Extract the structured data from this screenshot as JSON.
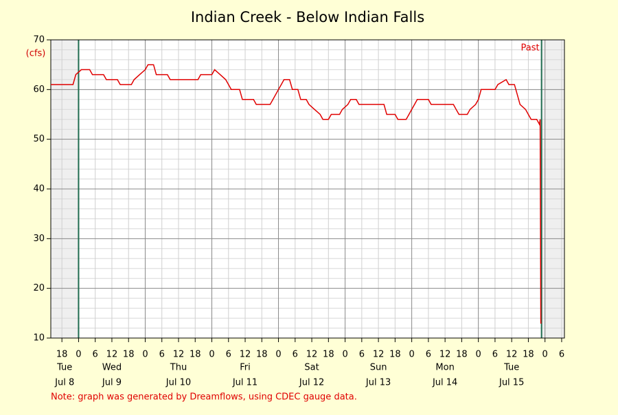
{
  "chart_data": {
    "type": "line",
    "title": "Indian Creek - Below Indian Falls",
    "y_label": "(cfs)",
    "note": "Note: graph was generated by Dreamflows, using CDEC gauge data.",
    "past_label": "Past",
    "shaded_before": "Jul 9 00:00",
    "shaded_after": "Jul 15 22:45",
    "xlim": [
      "Jul 8 14:00",
      "Jul 16 07:00"
    ],
    "ylim": [
      10,
      70
    ],
    "yticks": [
      10,
      20,
      30,
      40,
      50,
      60,
      70
    ],
    "yminor": [
      12,
      14,
      16,
      18,
      22,
      24,
      26,
      28,
      32,
      34,
      36,
      38,
      42,
      44,
      46,
      48,
      52,
      54,
      56,
      58,
      62,
      64,
      66,
      68
    ],
    "grid": true,
    "xticks": [
      {
        "value": "Jul 8 18:00",
        "label": "18"
      },
      {
        "value": "Jul 9 00:00",
        "label": "0"
      },
      {
        "value": "Jul 9 06:00",
        "label": "6"
      },
      {
        "value": "Jul 9 12:00",
        "label": "12"
      },
      {
        "value": "Jul 9 18:00",
        "label": "18"
      },
      {
        "value": "Jul 10 00:00",
        "label": "0"
      },
      {
        "value": "Jul 10 06:00",
        "label": "6"
      },
      {
        "value": "Jul 10 12:00",
        "label": "12"
      },
      {
        "value": "Jul 10 18:00",
        "label": "18"
      },
      {
        "value": "Jul 11 00:00",
        "label": "0"
      },
      {
        "value": "Jul 11 06:00",
        "label": "6"
      },
      {
        "value": "Jul 11 12:00",
        "label": "12"
      },
      {
        "value": "Jul 11 18:00",
        "label": "18"
      },
      {
        "value": "Jul 12 00:00",
        "label": "0"
      },
      {
        "value": "Jul 12 06:00",
        "label": "6"
      },
      {
        "value": "Jul 12 12:00",
        "label": "12"
      },
      {
        "value": "Jul 12 18:00",
        "label": "18"
      },
      {
        "value": "Jul 13 00:00",
        "label": "0"
      },
      {
        "value": "Jul 13 06:00",
        "label": "6"
      },
      {
        "value": "Jul 13 12:00",
        "label": "12"
      },
      {
        "value": "Jul 13 18:00",
        "label": "18"
      },
      {
        "value": "Jul 14 00:00",
        "label": "0"
      },
      {
        "value": "Jul 14 06:00",
        "label": "6"
      },
      {
        "value": "Jul 14 12:00",
        "label": "12"
      },
      {
        "value": "Jul 14 18:00",
        "label": "18"
      },
      {
        "value": "Jul 15 00:00",
        "label": "0"
      },
      {
        "value": "Jul 15 06:00",
        "label": "6"
      },
      {
        "value": "Jul 15 12:00",
        "label": "12"
      },
      {
        "value": "Jul 15 18:00",
        "label": "18"
      },
      {
        "value": "Jul 16 00:00",
        "label": "0"
      },
      {
        "value": "Jul 16 06:00",
        "label": "6"
      }
    ],
    "day_labels": [
      {
        "value": "Jul 8 19:00",
        "label": "Tue",
        "date": "Jul 8"
      },
      {
        "value": "Jul 9 12:00",
        "label": "Wed",
        "date": "Jul 9"
      },
      {
        "value": "Jul 10 12:00",
        "label": "Thu",
        "date": "Jul 10"
      },
      {
        "value": "Jul 11 12:00",
        "label": "Fri",
        "date": "Jul 11"
      },
      {
        "value": "Jul 12 12:00",
        "label": "Sat",
        "date": "Jul 12"
      },
      {
        "value": "Jul 13 12:00",
        "label": "Sun",
        "date": "Jul 13"
      },
      {
        "value": "Jul 14 12:00",
        "label": "Mon",
        "date": "Jul 14"
      },
      {
        "value": "Jul 15 12:00",
        "label": "Tue",
        "date": "Jul 15"
      }
    ],
    "x": [
      "Jul 8 14:00",
      "Jul 8 22:00",
      "Jul 8 23:00",
      "Jul 9 01:00",
      "Jul 9 04:00",
      "Jul 9 05:00",
      "Jul 9 09:00",
      "Jul 9 10:00",
      "Jul 9 14:00",
      "Jul 9 15:00",
      "Jul 9 19:00",
      "Jul 9 20:00",
      "Jul 9 22:00",
      "Jul 10 00:00",
      "Jul 10 01:00",
      "Jul 10 03:00",
      "Jul 10 04:00",
      "Jul 10 08:00",
      "Jul 10 09:00",
      "Jul 10 19:00",
      "Jul 10 20:00",
      "Jul 11 00:00",
      "Jul 11 01:00",
      "Jul 11 03:00",
      "Jul 11 05:00",
      "Jul 11 06:00",
      "Jul 11 07:00",
      "Jul 11 10:00",
      "Jul 11 11:00",
      "Jul 11 15:00",
      "Jul 11 16:00",
      "Jul 11 21:00",
      "Jul 11 22:00",
      "Jul 12 00:00",
      "Jul 12 01:00",
      "Jul 12 02:00",
      "Jul 12 04:00",
      "Jul 12 05:00",
      "Jul 12 07:00",
      "Jul 12 08:00",
      "Jul 12 10:00",
      "Jul 12 11:00",
      "Jul 12 13:00",
      "Jul 12 15:00",
      "Jul 12 16:00",
      "Jul 12 18:00",
      "Jul 12 19:00",
      "Jul 12 22:00",
      "Jul 12 23:00",
      "Jul 13 01:00",
      "Jul 13 02:00",
      "Jul 13 04:00",
      "Jul 13 05:00",
      "Jul 13 14:00",
      "Jul 13 15:00",
      "Jul 13 18:00",
      "Jul 13 19:00",
      "Jul 13 22:00",
      "Jul 13 23:00",
      "Jul 14 00:00",
      "Jul 14 01:00",
      "Jul 14 02:00",
      "Jul 14 06:00",
      "Jul 14 07:00",
      "Jul 14 15:00",
      "Jul 14 16:00",
      "Jul 14 17:00",
      "Jul 14 20:00",
      "Jul 14 21:00",
      "Jul 14 23:00",
      "Jul 15 00:00",
      "Jul 15 01:00",
      "Jul 15 06:00",
      "Jul 15 07:00",
      "Jul 15 10:00",
      "Jul 15 11:00",
      "Jul 15 13:00",
      "Jul 15 14:00",
      "Jul 15 15:00",
      "Jul 15 17:00",
      "Jul 15 18:00",
      "Jul 15 19:00",
      "Jul 15 21:00",
      "Jul 15 22:00",
      "Jul 15 22:15",
      "Jul 15 22:30",
      "Jul 15 22:45"
    ],
    "series": [
      {
        "name": "Flow",
        "color": "#e00000",
        "values": [
          61,
          61,
          63,
          64,
          64,
          63,
          63,
          62,
          62,
          61,
          61,
          62,
          63,
          64,
          65,
          65,
          63,
          63,
          62,
          62,
          63,
          63,
          64,
          63,
          62,
          61,
          60,
          60,
          58,
          58,
          57,
          57,
          58,
          60,
          61,
          62,
          62,
          60,
          60,
          58,
          58,
          57,
          56,
          55,
          54,
          54,
          55,
          55,
          56,
          57,
          58,
          58,
          57,
          57,
          55,
          55,
          54,
          54,
          55,
          56,
          57,
          58,
          58,
          57,
          57,
          56,
          55,
          55,
          56,
          57,
          58,
          60,
          60,
          61,
          62,
          61,
          61,
          59,
          57,
          56,
          55,
          54,
          54,
          53,
          54,
          13,
          13
        ]
      }
    ]
  }
}
